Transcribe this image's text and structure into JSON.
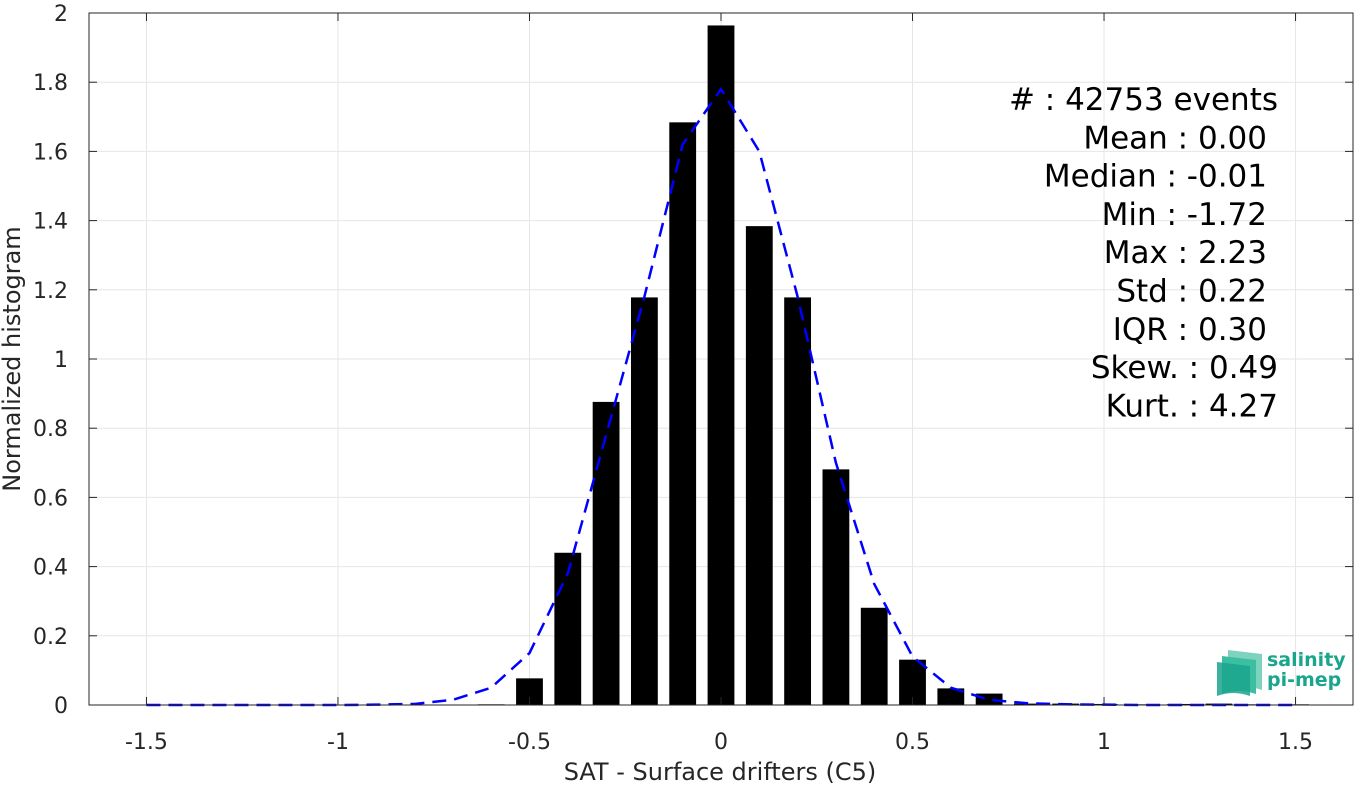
{
  "chart_data": {
    "type": "bar",
    "xlabel": "SAT - Surface drifters (C5)",
    "ylabel": "Normalized histogram",
    "xlim": [
      -1.65,
      1.65
    ],
    "ylim": [
      0,
      2
    ],
    "grid": true,
    "x_ticks": [
      -1.5,
      -1,
      -0.5,
      0,
      0.5,
      1,
      1.5
    ],
    "x_tick_labels": [
      "-1.5",
      "-1",
      "-0.5",
      "0",
      "0.5",
      "1",
      "1.5"
    ],
    "y_ticks": [
      0,
      0.2,
      0.4,
      0.6,
      0.8,
      1,
      1.2,
      1.4,
      1.6,
      1.8,
      2
    ],
    "y_tick_labels": [
      "0",
      "0.2",
      "0.4",
      "0.6",
      "0.8",
      "1",
      "1.2",
      "1.4",
      "1.6",
      "1.8",
      "2"
    ],
    "bar_width": 0.07,
    "series": [
      {
        "type": "bar",
        "color": "#000000",
        "x": [
          -0.6,
          -0.5,
          -0.4,
          -0.3,
          -0.2,
          -0.1,
          0.0,
          0.1,
          0.2,
          0.3,
          0.4,
          0.5,
          0.6,
          0.7,
          0.8,
          0.9,
          1.0,
          1.1,
          1.2,
          1.3,
          1.4,
          1.5
        ],
        "values": [
          0.002,
          0.077,
          0.44,
          0.876,
          1.178,
          1.684,
          1.964,
          1.384,
          1.178,
          0.681,
          0.281,
          0.131,
          0.048,
          0.033,
          0.004,
          0.004,
          0.003,
          0.002,
          0.003,
          0.004,
          0.002,
          0.002
        ]
      },
      {
        "type": "line",
        "style": "dashed",
        "color": "#0000ff",
        "x": [
          -1.5,
          -1.4,
          -1.3,
          -1.2,
          -1.1,
          -1.0,
          -0.9,
          -0.8,
          -0.7,
          -0.6,
          -0.5,
          -0.4,
          -0.3,
          -0.2,
          -0.1,
          0.0,
          0.1,
          0.2,
          0.3,
          0.4,
          0.5,
          0.6,
          0.7,
          0.8,
          0.9,
          1.0,
          1.1,
          1.2,
          1.3,
          1.4,
          1.5
        ],
        "values": [
          0,
          0,
          0,
          0,
          0,
          0,
          0.001,
          0.003,
          0.015,
          0.05,
          0.15,
          0.38,
          0.78,
          1.18,
          1.62,
          1.78,
          1.6,
          1.18,
          0.7,
          0.35,
          0.14,
          0.05,
          0.015,
          0.005,
          0.002,
          0.001,
          0,
          0,
          0,
          0,
          0
        ]
      }
    ],
    "stats_lines": [
      "#  : 42753 events",
      "Mean : 0.00",
      "Median : -0.01",
      "Min : -1.72",
      "Max : 2.23",
      "Std : 0.22",
      "IQR : 0.30",
      "Skew. : 0.49",
      "Kurt. : 4.27"
    ],
    "logo": {
      "line1": "salinity",
      "line2": "pi-mep",
      "color": "#1aa58d"
    }
  }
}
